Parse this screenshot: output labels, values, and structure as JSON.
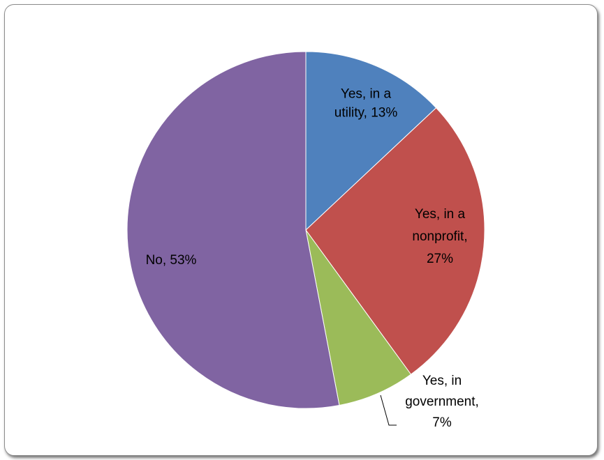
{
  "chart_data": {
    "type": "pie",
    "title": "",
    "start_angle_deg": 0,
    "direction": "clockwise",
    "slices": [
      {
        "name": "Yes, in a utility",
        "value": 13,
        "value_label": "13%",
        "color": "#4f81bd",
        "label_lines": [
          "Yes, in a",
          "utility, 13%"
        ]
      },
      {
        "name": "Yes, in a nonprofit",
        "value": 27,
        "value_label": "27%",
        "color": "#c0504d",
        "label_lines": [
          "Yes, in a",
          "nonprofit,",
          "27%"
        ]
      },
      {
        "name": "Yes, in government",
        "value": 7,
        "value_label": "7%",
        "color": "#9bbb59",
        "label_lines": [
          "Yes, in",
          "government,",
          "7%"
        ]
      },
      {
        "name": "No",
        "value": 53,
        "value_label": "53%",
        "color": "#8064a2",
        "label_lines": [
          "No, 53%"
        ]
      }
    ],
    "legend": "none",
    "data_labels": "category and percentage"
  }
}
